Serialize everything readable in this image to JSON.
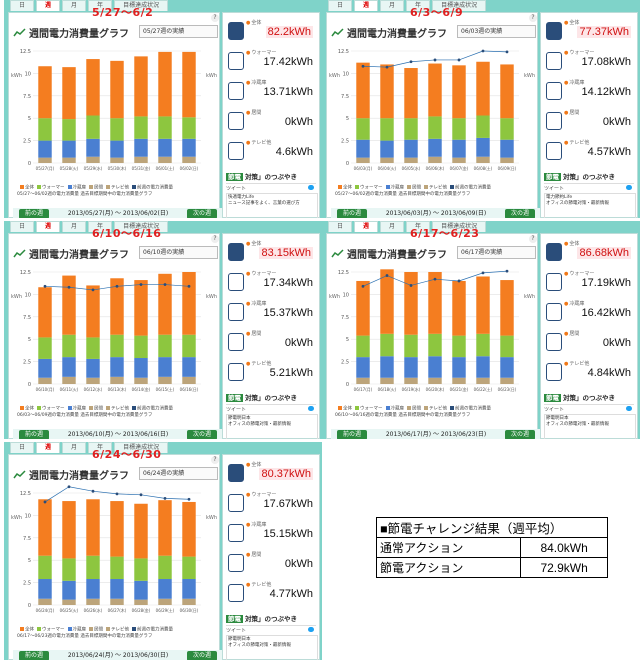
{
  "tabs": [
    "日",
    "週",
    "月",
    "年",
    "目標達成状況"
  ],
  "active_tab": 1,
  "chart_title": "週間電力消費量グラフ",
  "help_label": "?",
  "y_unit": "kWh",
  "legend": [
    "全体",
    "ウォーマー",
    "冷蔵庫",
    "居間",
    "テレビ他",
    "前週の電力消費量"
  ],
  "legend_note": "過去目標期間中の電力消費量グラフ",
  "nav": {
    "prev": "前の週",
    "next": "次の週"
  },
  "side_labels": {
    "total": "全体",
    "warmer": "ウォーマー",
    "fridge": "冷蔵庫",
    "living": "居間",
    "tv": "テレビ他"
  },
  "tsubo_tag": "節電",
  "tsubo_text": "対策」のつぶやき",
  "tweet_label": "ツイート",
  "colors": {
    "orange": "#f47d20",
    "green": "#8dc63f",
    "blue": "#4a7fd1",
    "tan": "#bca47a",
    "line": "#2a6fb0",
    "dot": "#2a4d7a"
  },
  "panels": [
    {
      "week_label": "5/27～6/2",
      "selector": "05/27週の実績",
      "date_range": "2013/05/27(月) ～ 2013/06/02(日)",
      "legend_dates": "05/27～06/02週の電力消費量",
      "total": "82.2kWh",
      "warmer": "17.42kWh",
      "fridge": "13.71kWh",
      "living": "0kWh",
      "tv": "4.6kWh",
      "tweet_user": "快適電力Life",
      "tweet_text": "ニュース記事をよく、言葉の選び方",
      "chart_data": {
        "type": "bar",
        "categories": [
          "05/27(月)",
          "05/28(火)",
          "05/29(水)",
          "05/30(木)",
          "05/31(金)",
          "06/01(土)",
          "06/02(日)"
        ],
        "ylim": [
          0,
          12.5
        ],
        "yticks": [
          0,
          2.5,
          5,
          7.5,
          10,
          12.5
        ],
        "series": [
          {
            "name": "テレビ他",
            "values": [
              0.6,
              0.6,
              0.7,
              0.6,
              0.7,
              0.7,
              0.7
            ]
          },
          {
            "name": "冷蔵庫",
            "values": [
              1.9,
              1.9,
              2.0,
              1.9,
              2.0,
              2.0,
              2.0
            ]
          },
          {
            "name": "ウォーマー",
            "values": [
              2.5,
              2.4,
              2.6,
              2.5,
              2.5,
              2.5,
              2.4
            ]
          },
          {
            "name": "全体",
            "values": [
              5.8,
              5.8,
              6.3,
              6.4,
              6.7,
              7.2,
              7.3
            ]
          }
        ],
        "line": null
      }
    },
    {
      "week_label": "6/3～6/9",
      "selector": "06/03週の実績",
      "date_range": "2013/06/03(月) ～ 2013/06/09(日)",
      "legend_dates": "05/27～06/02週の電力消費量",
      "total": "77.37kWh",
      "warmer": "17.08kWh",
      "fridge": "14.12kWh",
      "living": "0kWh",
      "tv": "4.57kWh",
      "tweet_user": "電力節約Life",
      "tweet_text": "オフィスの節電対策・最新情報",
      "chart_data": {
        "type": "bar",
        "categories": [
          "06/03(月)",
          "06/04(火)",
          "06/05(水)",
          "06/06(木)",
          "06/07(金)",
          "06/08(土)",
          "06/09(日)"
        ],
        "ylim": [
          0,
          12.5
        ],
        "yticks": [
          0,
          2.5,
          5,
          7.5,
          10,
          12.5
        ],
        "series": [
          {
            "name": "テレビ他",
            "values": [
              0.6,
              0.6,
              0.6,
              0.7,
              0.6,
              0.7,
              0.6
            ]
          },
          {
            "name": "冷蔵庫",
            "values": [
              2.0,
              1.9,
              2.0,
              2.0,
              2.0,
              2.1,
              2.0
            ]
          },
          {
            "name": "ウォーマー",
            "values": [
              2.4,
              2.5,
              2.4,
              2.5,
              2.4,
              2.5,
              2.4
            ]
          },
          {
            "name": "全体",
            "values": [
              6.2,
              6.0,
              5.6,
              5.9,
              5.9,
              6.0,
              6.0
            ]
          }
        ],
        "line": [
          10.8,
          10.7,
          11.3,
          11.5,
          11.5,
          12.5,
          12.4
        ]
      }
    },
    {
      "week_label": "6/10～6/16",
      "selector": "06/10週の実績",
      "date_range": "2013/06/10(月) ～ 2013/06/16(日)",
      "legend_dates": "06/03～06/09週の電力消費量",
      "total": "83.15kWh",
      "warmer": "17.34kWh",
      "fridge": "15.37kWh",
      "living": "0kWh",
      "tv": "5.21kWh",
      "tweet_user": "節電明日本",
      "tweet_text": "オフィスの節電対策・最新情報",
      "chart_data": {
        "type": "bar",
        "categories": [
          "06/10(月)",
          "06/11(火)",
          "06/12(水)",
          "06/13(木)",
          "06/14(金)",
          "06/15(土)",
          "06/16(日)"
        ],
        "ylim": [
          0,
          12.5
        ],
        "yticks": [
          0,
          2.5,
          5,
          7.5,
          10,
          12.5
        ],
        "series": [
          {
            "name": "テレビ他",
            "values": [
              0.7,
              0.8,
              0.7,
              0.8,
              0.7,
              0.8,
              0.8
            ]
          },
          {
            "name": "冷蔵庫",
            "values": [
              2.1,
              2.2,
              2.1,
              2.2,
              2.2,
              2.2,
              2.2
            ]
          },
          {
            "name": "ウォーマー",
            "values": [
              2.4,
              2.5,
              2.4,
              2.5,
              2.5,
              2.5,
              2.5
            ]
          },
          {
            "name": "全体",
            "values": [
              5.6,
              6.6,
              5.8,
              6.3,
              6.2,
              6.8,
              7.0
            ]
          }
        ],
        "line": [
          10.9,
          10.8,
          10.5,
          10.9,
          11.1,
          11.1,
          10.9
        ]
      }
    },
    {
      "week_label": "6/17～6/23",
      "selector": "06/17週の実績",
      "date_range": "2013/06/17(月) ～ 2013/06/23(日)",
      "legend_dates": "06/10～06/16週の電力消費量",
      "total": "86.68kWh",
      "warmer": "17.19kWh",
      "fridge": "16.42kWh",
      "living": "0kWh",
      "tv": "4.84kWh",
      "tweet_user": "節電明日本",
      "tweet_text": "オフィスの節電対策・最新情報",
      "chart_data": {
        "type": "bar",
        "categories": [
          "06/17(月)",
          "06/18(火)",
          "06/19(水)",
          "06/20(木)",
          "06/21(金)",
          "06/22(土)",
          "06/23(日)"
        ],
        "ylim": [
          0,
          12.5
        ],
        "yticks": [
          0,
          2.5,
          5,
          7.5,
          10,
          12.5
        ],
        "series": [
          {
            "name": "テレビ他",
            "values": [
              0.7,
              0.7,
              0.7,
              0.7,
              0.7,
              0.7,
              0.7
            ]
          },
          {
            "name": "冷蔵庫",
            "values": [
              2.3,
              2.4,
              2.3,
              2.4,
              2.3,
              2.4,
              2.3
            ]
          },
          {
            "name": "ウォーマー",
            "values": [
              2.4,
              2.5,
              2.5,
              2.5,
              2.4,
              2.5,
              2.4
            ]
          },
          {
            "name": "全体",
            "values": [
              6.1,
              7.2,
              7.0,
              6.9,
              6.1,
              6.4,
              6.2
            ]
          }
        ],
        "line": [
          10.9,
          12.1,
          11.0,
          11.7,
          11.5,
          12.4,
          12.6
        ]
      }
    },
    {
      "week_label": "6/24～6/30",
      "selector": "06/24週の実績",
      "date_range": "2013/06/24(月) ～ 2013/06/30(日)",
      "legend_dates": "06/17～06/23週の電力消費量",
      "total": "80.37kWh",
      "warmer": "17.67kWh",
      "fridge": "15.15kWh",
      "living": "0kWh",
      "tv": "4.77kWh",
      "tweet_user": "節電明日本",
      "tweet_text": "オフィスの節電対策・最新情報",
      "chart_data": {
        "type": "bar",
        "categories": [
          "06/24(月)",
          "06/25(火)",
          "06/26(水)",
          "06/27(木)",
          "06/28(金)",
          "06/29(土)",
          "06/30(日)"
        ],
        "ylim": [
          0,
          12.5
        ],
        "yticks": [
          0,
          2.5,
          5,
          7.5,
          10,
          12.5
        ],
        "series": [
          {
            "name": "テレビ他",
            "values": [
              0.7,
              0.6,
              0.7,
              0.7,
              0.6,
              0.7,
              0.7
            ]
          },
          {
            "name": "冷蔵庫",
            "values": [
              2.2,
              2.1,
              2.2,
              2.2,
              2.1,
              2.2,
              2.2
            ]
          },
          {
            "name": "ウォーマー",
            "values": [
              2.6,
              2.5,
              2.6,
              2.5,
              2.5,
              2.6,
              2.5
            ]
          },
          {
            "name": "全体",
            "values": [
              6.3,
              6.4,
              6.3,
              6.2,
              6.1,
              6.2,
              6.1
            ]
          }
        ],
        "line": [
          11.5,
          13.2,
          12.7,
          12.4,
          12.3,
          11.9,
          11.8
        ]
      }
    }
  ],
  "summary": {
    "title": "■節電チャレンジ結果（週平均）",
    "rows": [
      {
        "label": "通常アクション",
        "value": "84.0kWh"
      },
      {
        "label": "節電アクション",
        "value": "72.9kWh"
      }
    ]
  }
}
